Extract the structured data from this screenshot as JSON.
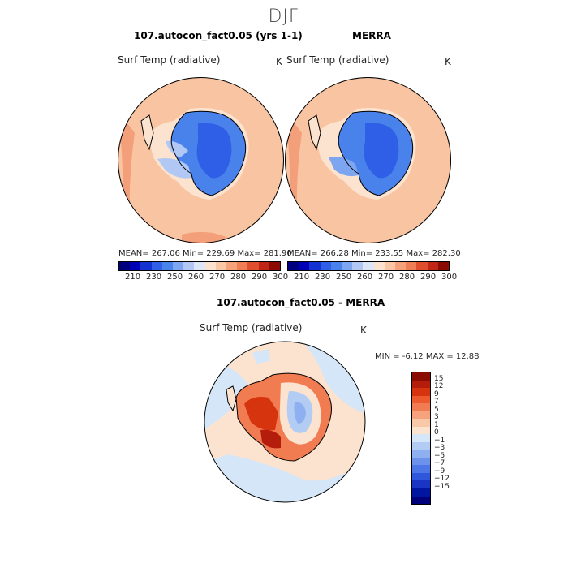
{
  "season": "DJF",
  "panels": [
    {
      "title": "107.autocon_fact0.05 (yrs 1-1)",
      "variable": "Surf Temp (radiative)",
      "unit": "K",
      "stats": "MEAN= 267.06   Min= 229.69   Max= 281.90"
    },
    {
      "title": "MERRA",
      "variable": "Surf Temp (radiative)",
      "unit": "K",
      "stats": "MEAN= 266.28   Min= 233.55   Max= 282.30"
    }
  ],
  "abs_colorbar": {
    "colors": [
      "#00007f",
      "#0000b4",
      "#1431d2",
      "#2e5fe6",
      "#4a82ec",
      "#7ea5f0",
      "#b1c8f4",
      "#dce6f7",
      "#fbe2cf",
      "#f9c7a5",
      "#f5a27b",
      "#ef7d56",
      "#e04f2d",
      "#c12516",
      "#8b0a02"
    ],
    "ticks": [
      "210",
      "230",
      "250",
      "260",
      "270",
      "280",
      "290",
      "300"
    ]
  },
  "diff_panel": {
    "title": "107.autocon_fact0.05 - MERRA",
    "variable": "Surf Temp (radiative)",
    "unit": "K",
    "minmax": "MIN =   -6.12  MAX =   12.88"
  },
  "diff_colorbar": {
    "colors": [
      "#8b0a02",
      "#b41d0b",
      "#d6340f",
      "#ec5a2d",
      "#f27c52",
      "#f6a27d",
      "#f9c8a8",
      "#fbe3cf",
      "#d4e6f7",
      "#b2ccf3",
      "#8fb0f0",
      "#6c92ec",
      "#4d76e6",
      "#2f57dc",
      "#1a34c4",
      "#0016a0",
      "#00007a"
    ],
    "labels": [
      "15",
      "12",
      "9",
      "7",
      "5",
      "3",
      "1",
      "0",
      "−1",
      "−3",
      "−5",
      "−7",
      "−9",
      "−12",
      "−15"
    ]
  }
}
